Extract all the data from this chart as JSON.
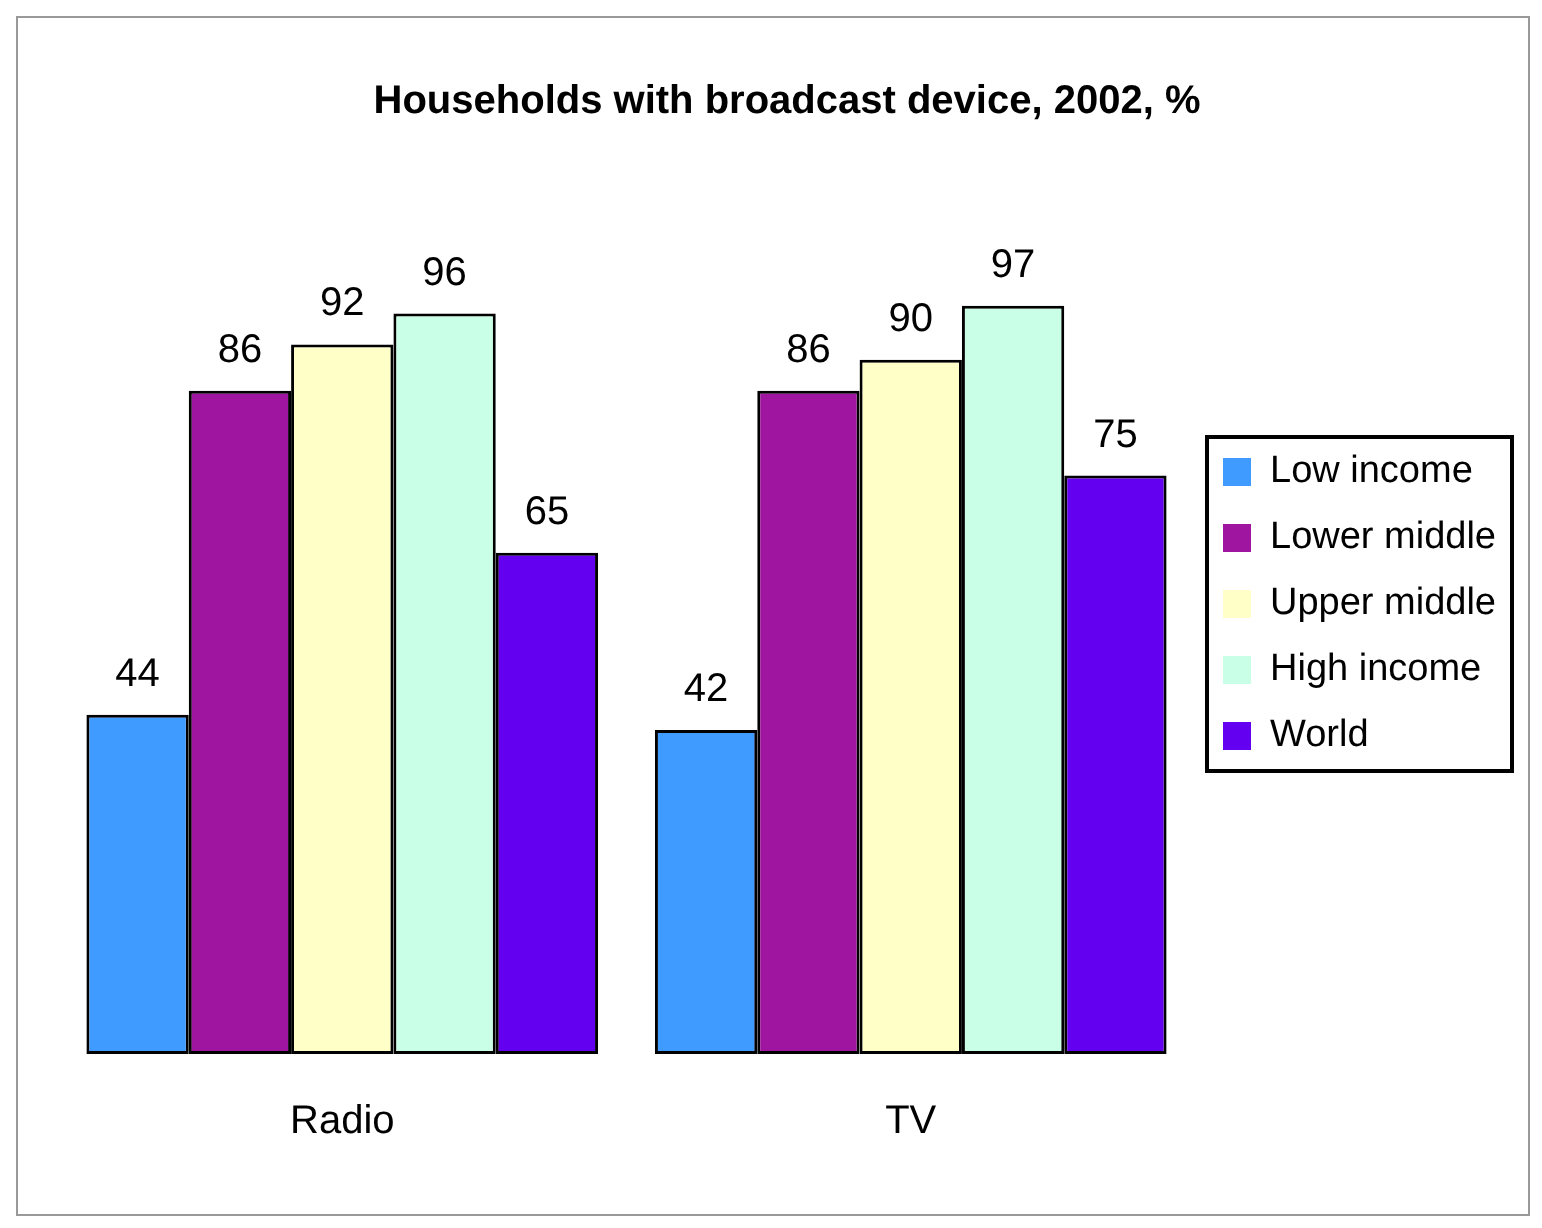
{
  "chart_data": {
    "type": "bar",
    "title": "Households with broadcast device, 2002, %",
    "categories": [
      "Radio",
      "TV"
    ],
    "series": [
      {
        "name": "Low income",
        "color": "#3f9bff",
        "values": [
          44,
          42
        ]
      },
      {
        "name": "Lower middle",
        "color": "#a0159f",
        "values": [
          86,
          86
        ]
      },
      {
        "name": "Upper middle",
        "color": "#ffffc8",
        "values": [
          92,
          90
        ]
      },
      {
        "name": "High income",
        "color": "#c8ffe6",
        "values": [
          96,
          97
        ]
      },
      {
        "name": "World",
        "color": "#6400f0",
        "values": [
          65,
          75
        ]
      }
    ],
    "data_labels": true,
    "legend": "right",
    "grid": false
  }
}
